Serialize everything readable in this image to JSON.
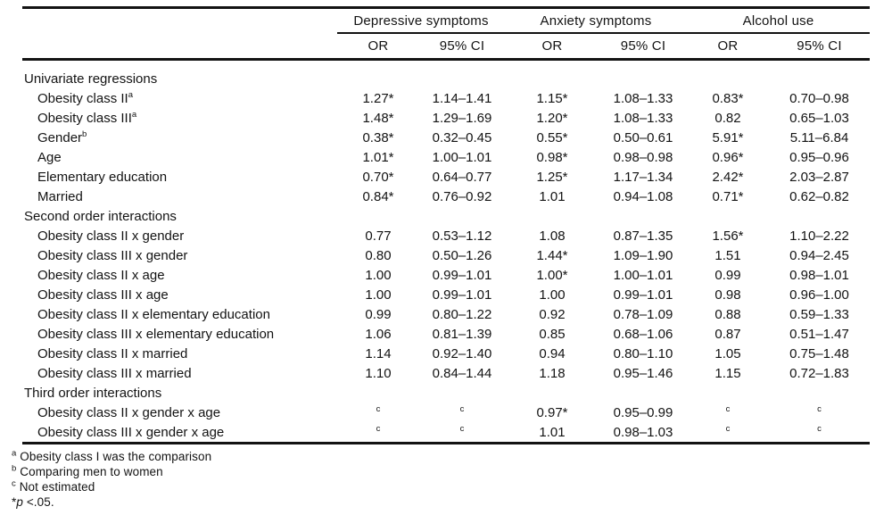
{
  "header": {
    "groups": [
      {
        "label": "Depressive symptoms"
      },
      {
        "label": "Anxiety symptoms"
      },
      {
        "label": "Alcohol use"
      }
    ],
    "subheaders": [
      "OR",
      "95% CI",
      "OR",
      "95% CI",
      "OR",
      "95% CI"
    ]
  },
  "sections": [
    {
      "title": "Univariate regressions",
      "rows": [
        {
          "label": "Obesity class II",
          "sup": "a",
          "cells": [
            "1.27*",
            "1.14–1.41",
            "1.15*",
            "1.08–1.33",
            "0.83*",
            "0.70–0.98"
          ]
        },
        {
          "label": "Obesity class III",
          "sup": "a",
          "cells": [
            "1.48*",
            "1.29–1.69",
            "1.20*",
            "1.08–1.33",
            "0.82",
            "0.65–1.03"
          ]
        },
        {
          "label": "Gender",
          "sup": "b",
          "cells": [
            "0.38*",
            "0.32–0.45",
            "0.55*",
            "0.50–0.61",
            "5.91*",
            "5.11–6.84"
          ]
        },
        {
          "label": "Age",
          "cells": [
            "1.01*",
            "1.00–1.01",
            "0.98*",
            "0.98–0.98",
            "0.96*",
            "0.95–0.96"
          ]
        },
        {
          "label": "Elementary education",
          "cells": [
            "0.70*",
            "0.64–0.77",
            "1.25*",
            "1.17–1.34",
            "2.42*",
            "2.03–2.87"
          ]
        },
        {
          "label": "Married",
          "cells": [
            "0.84*",
            "0.76–0.92",
            "1.01",
            "0.94–1.08",
            "0.71*",
            "0.62–0.82"
          ]
        }
      ]
    },
    {
      "title": "Second order interactions",
      "rows": [
        {
          "label": "Obesity class II x gender",
          "cells": [
            "0.77",
            "0.53–1.12",
            "1.08",
            "0.87–1.35",
            "1.56*",
            "1.10–2.22"
          ]
        },
        {
          "label": "Obesity class III x gender",
          "cells": [
            "0.80",
            "0.50–1.26",
            "1.44*",
            "1.09–1.90",
            "1.51",
            "0.94–2.45"
          ]
        },
        {
          "label": "Obesity class II x age",
          "cells": [
            "1.00",
            "0.99–1.01",
            "1.00*",
            "1.00–1.01",
            "0.99",
            "0.98–1.01"
          ]
        },
        {
          "label": "Obesity class III x age",
          "cells": [
            "1.00",
            "0.99–1.01",
            "1.00",
            "0.99–1.01",
            "0.98",
            "0.96–1.00"
          ]
        },
        {
          "label": "Obesity class II x elementary education",
          "cells": [
            "0.99",
            "0.80–1.22",
            "0.92",
            "0.78–1.09",
            "0.88",
            "0.59–1.33"
          ]
        },
        {
          "label": "Obesity class III x elementary education",
          "cells": [
            "1.06",
            "0.81–1.39",
            "0.85",
            "0.68–1.06",
            "0.87",
            "0.51–1.47"
          ]
        },
        {
          "label": "Obesity class II x married",
          "cells": [
            "1.14",
            "0.92–1.40",
            "0.94",
            "0.80–1.10",
            "1.05",
            "0.75–1.48"
          ]
        },
        {
          "label": "Obesity class III x married",
          "cells": [
            "1.10",
            "0.84–1.44",
            "1.18",
            "0.95–1.46",
            "1.15",
            "0.72–1.83"
          ]
        }
      ]
    },
    {
      "title": "Third order interactions",
      "rows": [
        {
          "label": "Obesity class II x gender x age",
          "cells": [
            "c",
            "c",
            "0.97*",
            "0.95–0.99",
            "c",
            "c"
          ]
        },
        {
          "label": "Obesity class III x gender x age",
          "cells": [
            "c",
            "c",
            "1.01",
            "0.98–1.03",
            "c",
            "c"
          ]
        }
      ]
    }
  ],
  "footnotes": [
    {
      "marker": "a",
      "sup": true,
      "text": "Obesity class I was the comparison"
    },
    {
      "marker": "b",
      "sup": true,
      "text": "Comparing men to women"
    },
    {
      "marker": "c",
      "sup": true,
      "text": "Not estimated"
    },
    {
      "marker": "*",
      "sup": false,
      "italic": "p",
      "text": " <.05."
    }
  ],
  "colors": {
    "text": "#131313",
    "rule": "#131313",
    "background": "#ffffff"
  }
}
